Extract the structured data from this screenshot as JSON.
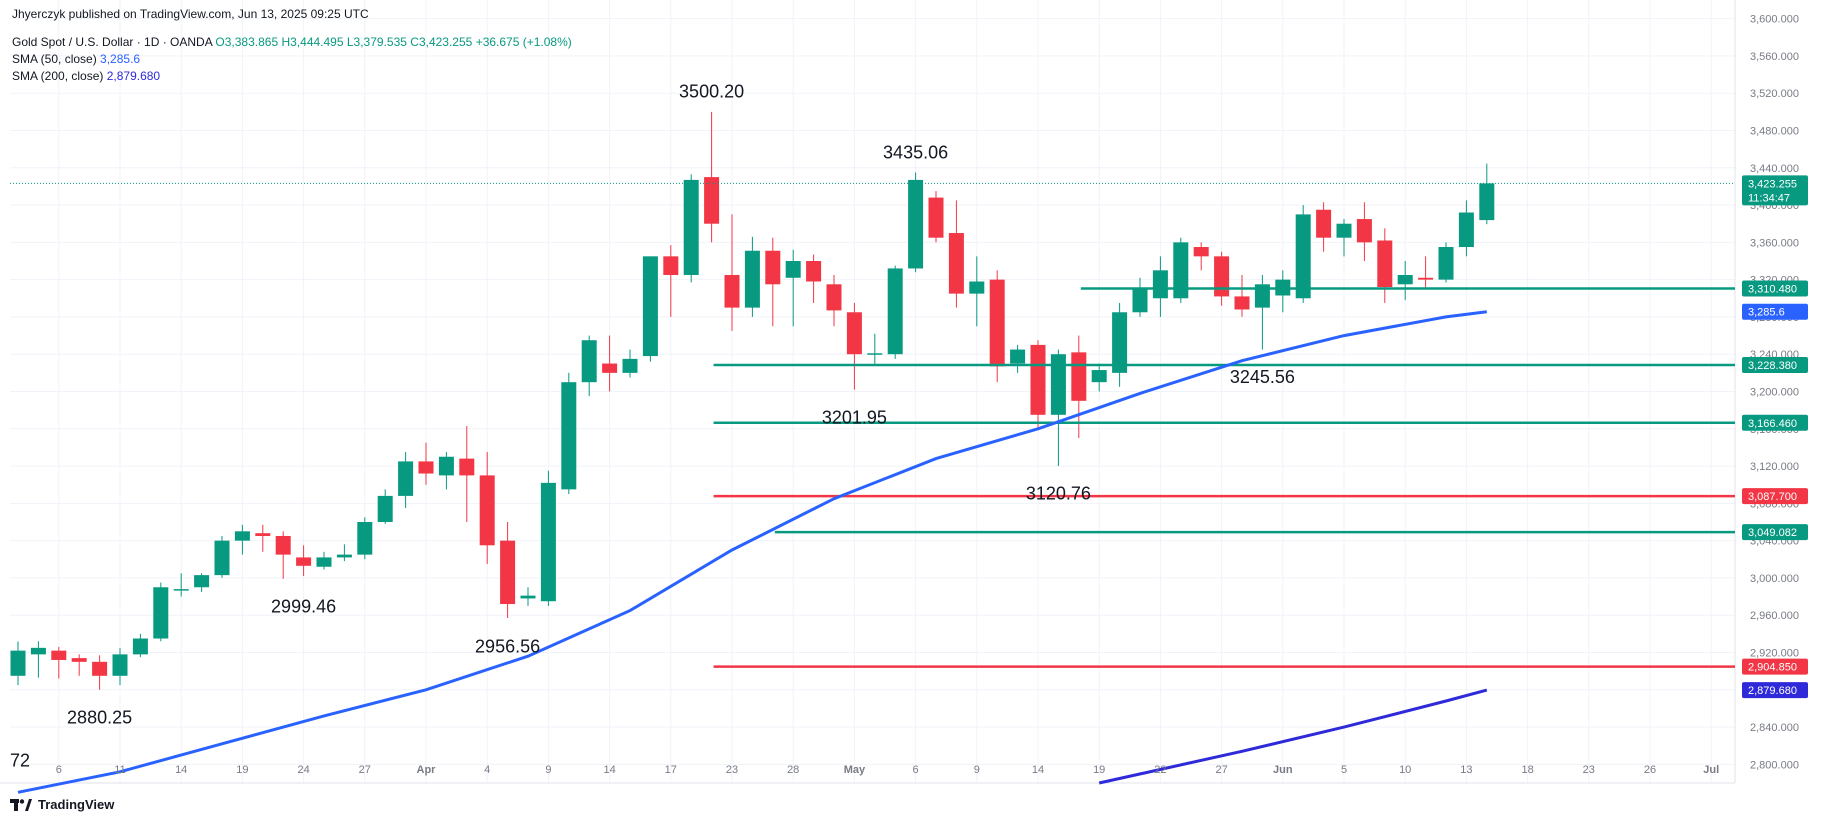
{
  "header": {
    "publisher": "Jhyerczyk published on TradingView.com, Jun 13, 2025 09:25 UTC",
    "instrument": "Gold Spot / U.S. Dollar · 1D · OANDA",
    "open": "O3,383.865",
    "high": "H3,444.495",
    "low": "L3,379.535",
    "close": "C3,423.255",
    "change": "+36.675 (+1.08%)",
    "sma50_label": "SMA (50, close)",
    "sma50_value": "3,285.6",
    "sma200_label": "SMA (200, close)",
    "sma200_value": "2,879.680"
  },
  "footer": {
    "logo_text": "TradingView"
  },
  "colors": {
    "up": "#089981",
    "down": "#f23645",
    "sma50": "#2962ff",
    "sma200": "#2e2ad9",
    "level_green": "#089981",
    "level_red": "#f23645",
    "grid": "#f0f3fa",
    "axis_text": "#787b86"
  },
  "chart_data": {
    "type": "candlestick",
    "symbol": "XAUUSD",
    "timeframe": "1D",
    "ylim": [
      2780,
      3620
    ],
    "y_ticks": [
      2800,
      2840,
      2880,
      2920,
      2960,
      3000,
      3040,
      3080,
      3120,
      3160,
      3200,
      3240,
      3280,
      3320,
      3360,
      3400,
      3440,
      3480,
      3520,
      3560,
      3600
    ],
    "y_tick_labels": [
      "2,800.000",
      "2,840.000",
      "2,880.000",
      "2,920.000",
      "2,960.000",
      "3,000.000",
      "3,040.000",
      "3,080.000",
      "3,120.000",
      "3,160.000",
      "3,200.000",
      "3,240.000",
      "3,280.000",
      "3,320.000",
      "3,360.000",
      "3,400.000",
      "3,440.000",
      "3,480.000",
      "3,520.000",
      "3,560.000",
      "3,600.000"
    ],
    "x_ticks": [
      {
        "i": 2,
        "label": "6"
      },
      {
        "i": 5,
        "label": "11"
      },
      {
        "i": 8,
        "label": "14"
      },
      {
        "i": 11,
        "label": "19"
      },
      {
        "i": 14,
        "label": "24"
      },
      {
        "i": 17,
        "label": "27"
      },
      {
        "i": 20,
        "label": "Apr"
      },
      {
        "i": 23,
        "label": "4"
      },
      {
        "i": 26,
        "label": "9"
      },
      {
        "i": 29,
        "label": "14"
      },
      {
        "i": 32,
        "label": "17"
      },
      {
        "i": 35,
        "label": "23"
      },
      {
        "i": 38,
        "label": "28"
      },
      {
        "i": 41,
        "label": "May"
      },
      {
        "i": 44,
        "label": "6"
      },
      {
        "i": 47,
        "label": "9"
      },
      {
        "i": 50,
        "label": "14"
      },
      {
        "i": 53,
        "label": "19"
      },
      {
        "i": 56,
        "label": "22"
      },
      {
        "i": 59,
        "label": "27"
      },
      {
        "i": 62,
        "label": "Jun"
      },
      {
        "i": 65,
        "label": "5"
      },
      {
        "i": 68,
        "label": "10"
      },
      {
        "i": 71,
        "label": "13"
      },
      {
        "i": 74,
        "label": "18"
      },
      {
        "i": 77,
        "label": "23"
      },
      {
        "i": 80,
        "label": "26"
      },
      {
        "i": 83,
        "label": "Jul"
      }
    ],
    "candles": [
      {
        "o": 2895,
        "h": 2932,
        "l": 2885,
        "c": 2922
      },
      {
        "o": 2918,
        "h": 2932,
        "l": 2893,
        "c": 2925
      },
      {
        "o": 2922,
        "h": 2926,
        "l": 2892,
        "c": 2912
      },
      {
        "o": 2914,
        "h": 2918,
        "l": 2895,
        "c": 2910
      },
      {
        "o": 2910,
        "h": 2917,
        "l": 2880,
        "c": 2895
      },
      {
        "o": 2895,
        "h": 2925,
        "l": 2885,
        "c": 2918
      },
      {
        "o": 2918,
        "h": 2940,
        "l": 2915,
        "c": 2935
      },
      {
        "o": 2935,
        "h": 2995,
        "l": 2932,
        "c": 2990
      },
      {
        "o": 2988,
        "h": 3005,
        "l": 2980,
        "c": 2988
      },
      {
        "o": 2990,
        "h": 3005,
        "l": 2985,
        "c": 3003
      },
      {
        "o": 3003,
        "h": 3045,
        "l": 3000,
        "c": 3040
      },
      {
        "o": 3040,
        "h": 3057,
        "l": 3025,
        "c": 3050
      },
      {
        "o": 3048,
        "h": 3057,
        "l": 3028,
        "c": 3045
      },
      {
        "o": 3045,
        "h": 3050,
        "l": 2999,
        "c": 3025
      },
      {
        "o": 3022,
        "h": 3035,
        "l": 3002,
        "c": 3013
      },
      {
        "o": 3012,
        "h": 3028,
        "l": 3009,
        "c": 3022
      },
      {
        "o": 3022,
        "h": 3036,
        "l": 3018,
        "c": 3025
      },
      {
        "o": 3025,
        "h": 3065,
        "l": 3020,
        "c": 3060
      },
      {
        "o": 3060,
        "h": 3095,
        "l": 3058,
        "c": 3088
      },
      {
        "o": 3088,
        "h": 3135,
        "l": 3075,
        "c": 3125
      },
      {
        "o": 3125,
        "h": 3145,
        "l": 3100,
        "c": 3112
      },
      {
        "o": 3110,
        "h": 3135,
        "l": 3095,
        "c": 3130
      },
      {
        "o": 3128,
        "h": 3163,
        "l": 3060,
        "c": 3110
      },
      {
        "o": 3110,
        "h": 3135,
        "l": 3015,
        "c": 3035
      },
      {
        "o": 3040,
        "h": 3060,
        "l": 2957,
        "c": 2972
      },
      {
        "o": 2978,
        "h": 2990,
        "l": 2970,
        "c": 2981
      },
      {
        "o": 2975,
        "h": 3115,
        "l": 2970,
        "c": 3102
      },
      {
        "o": 3095,
        "h": 3220,
        "l": 3090,
        "c": 3210
      },
      {
        "o": 3210,
        "h": 3260,
        "l": 3195,
        "c": 3255
      },
      {
        "o": 3230,
        "h": 3260,
        "l": 3200,
        "c": 3220
      },
      {
        "o": 3220,
        "h": 3245,
        "l": 3215,
        "c": 3235
      },
      {
        "o": 3238,
        "h": 3345,
        "l": 3232,
        "c": 3345
      },
      {
        "o": 3345,
        "h": 3357,
        "l": 3280,
        "c": 3325
      },
      {
        "o": 3325,
        "h": 3433,
        "l": 3317,
        "c": 3427
      },
      {
        "o": 3430,
        "h": 3500,
        "l": 3360,
        "c": 3380
      },
      {
        "o": 3325,
        "h": 3390,
        "l": 3265,
        "c": 3290
      },
      {
        "o": 3290,
        "h": 3366,
        "l": 3280,
        "c": 3351
      },
      {
        "o": 3351,
        "h": 3365,
        "l": 3270,
        "c": 3315
      },
      {
        "o": 3322,
        "h": 3352,
        "l": 3270,
        "c": 3340
      },
      {
        "o": 3340,
        "h": 3347,
        "l": 3295,
        "c": 3318
      },
      {
        "o": 3315,
        "h": 3325,
        "l": 3270,
        "c": 3287
      },
      {
        "o": 3285,
        "h": 3295,
        "l": 3202,
        "c": 3240
      },
      {
        "o": 3240,
        "h": 3262,
        "l": 3228,
        "c": 3241
      },
      {
        "o": 3240,
        "h": 3335,
        "l": 3235,
        "c": 3332
      },
      {
        "o": 3332,
        "h": 3435,
        "l": 3328,
        "c": 3427
      },
      {
        "o": 3408,
        "h": 3415,
        "l": 3360,
        "c": 3365
      },
      {
        "o": 3370,
        "h": 3405,
        "l": 3290,
        "c": 3305
      },
      {
        "o": 3305,
        "h": 3345,
        "l": 3270,
        "c": 3318
      },
      {
        "o": 3320,
        "h": 3330,
        "l": 3210,
        "c": 3227
      },
      {
        "o": 3230,
        "h": 3250,
        "l": 3220,
        "c": 3245
      },
      {
        "o": 3250,
        "h": 3255,
        "l": 3160,
        "c": 3175
      },
      {
        "o": 3175,
        "h": 3245,
        "l": 3120,
        "c": 3240
      },
      {
        "o": 3242,
        "h": 3260,
        "l": 3150,
        "c": 3190
      },
      {
        "o": 3210,
        "h": 3230,
        "l": 3200,
        "c": 3223
      },
      {
        "o": 3220,
        "h": 3295,
        "l": 3205,
        "c": 3285
      },
      {
        "o": 3285,
        "h": 3322,
        "l": 3280,
        "c": 3310
      },
      {
        "o": 3300,
        "h": 3345,
        "l": 3280,
        "c": 3330
      },
      {
        "o": 3300,
        "h": 3365,
        "l": 3295,
        "c": 3360
      },
      {
        "o": 3355,
        "h": 3360,
        "l": 3330,
        "c": 3345
      },
      {
        "o": 3345,
        "h": 3350,
        "l": 3292,
        "c": 3302
      },
      {
        "o": 3302,
        "h": 3325,
        "l": 3280,
        "c": 3288
      },
      {
        "o": 3290,
        "h": 3325,
        "l": 3245,
        "c": 3315
      },
      {
        "o": 3303,
        "h": 3330,
        "l": 3285,
        "c": 3320
      },
      {
        "o": 3300,
        "h": 3400,
        "l": 3295,
        "c": 3390
      },
      {
        "o": 3395,
        "h": 3403,
        "l": 3350,
        "c": 3365
      },
      {
        "o": 3365,
        "h": 3385,
        "l": 3345,
        "c": 3380
      },
      {
        "o": 3385,
        "h": 3403,
        "l": 3340,
        "c": 3360
      },
      {
        "o": 3362,
        "h": 3375,
        "l": 3295,
        "c": 3312
      },
      {
        "o": 3315,
        "h": 3340,
        "l": 3298,
        "c": 3325
      },
      {
        "o": 3322,
        "h": 3345,
        "l": 3310,
        "c": 3320
      },
      {
        "o": 3320,
        "h": 3360,
        "l": 3317,
        "c": 3355
      },
      {
        "o": 3355,
        "h": 3405,
        "l": 3345,
        "c": 3392
      },
      {
        "o": 3383.865,
        "h": 3444.495,
        "l": 3379.535,
        "c": 3423.255
      }
    ],
    "sma50": [
      {
        "i": 0,
        "v": 2770
      },
      {
        "i": 5,
        "v": 2792
      },
      {
        "i": 10,
        "v": 2822
      },
      {
        "i": 15,
        "v": 2852
      },
      {
        "i": 20,
        "v": 2880
      },
      {
        "i": 25,
        "v": 2916
      },
      {
        "i": 30,
        "v": 2965
      },
      {
        "i": 35,
        "v": 3030
      },
      {
        "i": 40,
        "v": 3085
      },
      {
        "i": 45,
        "v": 3128
      },
      {
        "i": 50,
        "v": 3160
      },
      {
        "i": 55,
        "v": 3198
      },
      {
        "i": 60,
        "v": 3233
      },
      {
        "i": 65,
        "v": 3260
      },
      {
        "i": 70,
        "v": 3280
      },
      {
        "i": 72,
        "v": 3285.6
      }
    ],
    "sma200": [
      {
        "i": 53,
        "v": 2780
      },
      {
        "i": 60,
        "v": 2814
      },
      {
        "i": 65,
        "v": 2840
      },
      {
        "i": 70,
        "v": 2868
      },
      {
        "i": 72,
        "v": 2879.68
      }
    ],
    "levels": [
      {
        "value": 3310.48,
        "label": "3,310.480",
        "color": "green",
        "from_i": 52
      },
      {
        "value": 3228.38,
        "label": "3,228.380",
        "color": "green",
        "from_i": 34
      },
      {
        "value": 3166.46,
        "label": "3,166.460",
        "color": "green",
        "from_i": 34
      },
      {
        "value": 3087.7,
        "label": "3,087.700",
        "color": "red",
        "from_i": 34
      },
      {
        "value": 3049.082,
        "label": "3,049.082",
        "color": "green",
        "from_i": 37
      },
      {
        "value": 2904.85,
        "label": "2,904.850",
        "color": "red",
        "from_i": 34
      }
    ],
    "price_tags": [
      {
        "value": 3423.255,
        "label": "3,423.255",
        "sub": "11:34:47",
        "color": "#089981"
      },
      {
        "value": 3285.6,
        "label": "3,285.6",
        "color": "#2962ff"
      },
      {
        "value": 2879.68,
        "label": "2,879.680",
        "color": "#2e2ad9"
      }
    ],
    "annotations": [
      {
        "text": "3500.20",
        "i": 34,
        "v": 3500.2,
        "pos": "above"
      },
      {
        "text": "3435.06",
        "i": 44,
        "v": 3435.06,
        "pos": "above"
      },
      {
        "text": "3201.95",
        "i": 41,
        "v": 3201.95,
        "pos": "below"
      },
      {
        "text": "3120.76",
        "i": 51,
        "v": 3120.76,
        "pos": "below"
      },
      {
        "text": "3245.56",
        "i": 61,
        "v": 3245.56,
        "pos": "below"
      },
      {
        "text": "2999.46",
        "i": 14,
        "v": 2999.46,
        "pos": "below"
      },
      {
        "text": "2956.56",
        "i": 24,
        "v": 2956.56,
        "pos": "below"
      },
      {
        "text": "2880.25",
        "i": 4,
        "v": 2880.25,
        "pos": "below"
      },
      {
        "text": "72",
        "i": 0,
        "v": 2800,
        "pos": "left"
      }
    ]
  }
}
